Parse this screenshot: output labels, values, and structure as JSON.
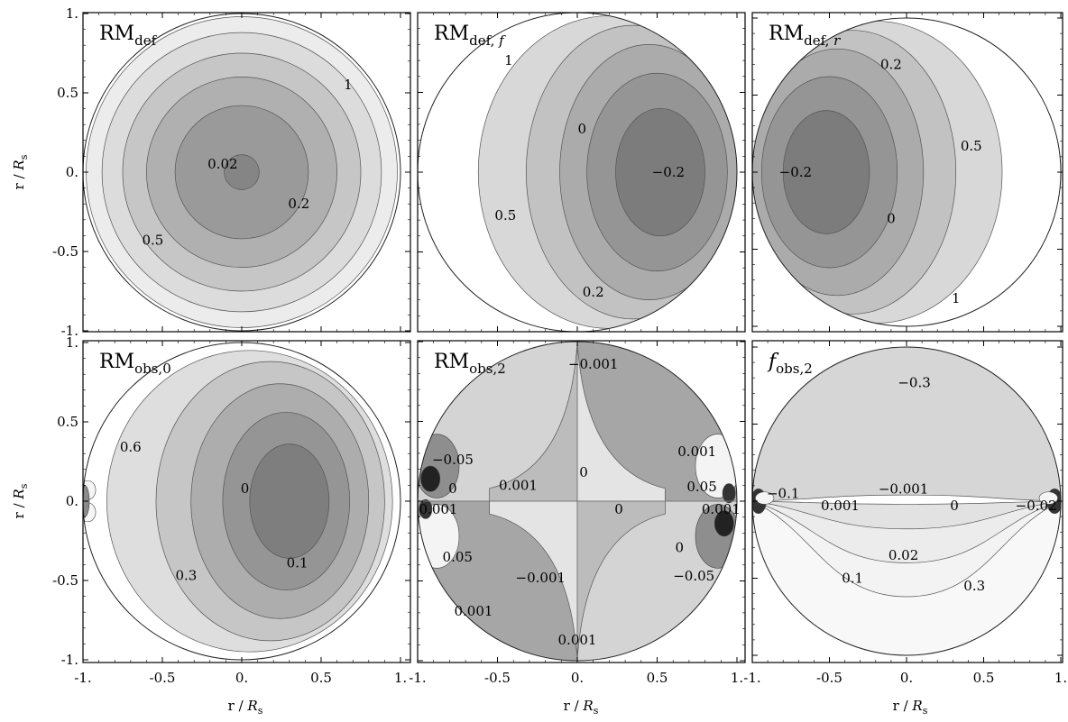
{
  "chart_data": [
    {
      "type": "heatmap",
      "title": {
        "main": "RM",
        "sub": "def",
        "italic_sub": ""
      },
      "xlim": [
        -1,
        1
      ],
      "ylim": [
        -1,
        1
      ],
      "x_ticks": [
        "-1.",
        "-0.5",
        "0.",
        "0.5",
        "1."
      ],
      "y_ticks": [
        "1.",
        "0.5",
        "0.",
        "-0.5",
        "-1."
      ],
      "contours": [
        {
          "cx": 0,
          "cy": 0,
          "rx": 0.98,
          "ry": 0.98,
          "fill": "#ececec"
        },
        {
          "cx": 0,
          "cy": 0,
          "rx": 0.88,
          "ry": 0.88,
          "fill": "#dcdcdc"
        },
        {
          "cx": 0,
          "cy": 0,
          "rx": 0.75,
          "ry": 0.75,
          "fill": "#c6c6c6"
        },
        {
          "cx": 0,
          "cy": 0,
          "rx": 0.6,
          "ry": 0.6,
          "fill": "#b0b0b0"
        },
        {
          "cx": 0,
          "cy": 0,
          "rx": 0.42,
          "ry": 0.42,
          "fill": "#9a9a9a"
        },
        {
          "cx": 0,
          "cy": 0,
          "rx": 0.11,
          "ry": 0.11,
          "fill": "#858585"
        }
      ],
      "labels": [
        {
          "text": "1",
          "x": 0.67,
          "y": 0.55
        },
        {
          "text": "0.02",
          "x": -0.12,
          "y": 0.05
        },
        {
          "text": "0.2",
          "x": 0.36,
          "y": -0.2
        },
        {
          "text": "0.5",
          "x": -0.56,
          "y": -0.43
        }
      ]
    },
    {
      "type": "heatmap",
      "title": {
        "main": "RM",
        "sub": "def,",
        "italic_sub": "f"
      },
      "xlim": [
        -1,
        1
      ],
      "ylim": [
        -1,
        1
      ],
      "x_ticks": [
        "-1.",
        "-0.5",
        "0.",
        "0.5",
        "1."
      ],
      "y_ticks": [
        "1.",
        "0.5",
        "0.",
        "-0.5",
        "-1."
      ],
      "contours": [
        {
          "cx": 0.2,
          "cy": 0,
          "rx": 0.82,
          "ry": 0.98,
          "fill": "#d8d8d8"
        },
        {
          "cx": 0.35,
          "cy": 0,
          "rx": 0.67,
          "ry": 0.92,
          "fill": "#c2c2c2"
        },
        {
          "cx": 0.45,
          "cy": 0,
          "rx": 0.56,
          "ry": 0.8,
          "fill": "#ababab"
        },
        {
          "cx": 0.5,
          "cy": 0,
          "rx": 0.44,
          "ry": 0.62,
          "fill": "#959595"
        },
        {
          "cx": 0.52,
          "cy": 0,
          "rx": 0.28,
          "ry": 0.4,
          "fill": "#7c7c7c"
        }
      ],
      "labels": [
        {
          "text": "1",
          "x": -0.43,
          "y": 0.7
        },
        {
          "text": "0",
          "x": 0.03,
          "y": 0.27
        },
        {
          "text": "-0.2",
          "x": 0.57,
          "y": 0.0
        },
        {
          "text": "0.5",
          "x": -0.45,
          "y": -0.27
        },
        {
          "text": "0.2",
          "x": 0.1,
          "y": -0.75
        }
      ]
    },
    {
      "type": "heatmap",
      "title": {
        "main": "RM",
        "sub": "def,",
        "italic_sub": "r"
      },
      "xlim": [
        -1,
        1
      ],
      "ylim": [
        -1,
        1
      ],
      "x_ticks": [
        "-1.",
        "-0.5",
        "0.",
        "0.5",
        "1."
      ],
      "y_ticks": [
        "1.",
        "0.5",
        "0.",
        "-0.5",
        "-1."
      ],
      "contours": [
        {
          "cx": -0.2,
          "cy": 0,
          "rx": 0.82,
          "ry": 0.98,
          "fill": "#d8d8d8"
        },
        {
          "cx": -0.35,
          "cy": 0,
          "rx": 0.67,
          "ry": 0.92,
          "fill": "#c2c2c2"
        },
        {
          "cx": -0.45,
          "cy": 0,
          "rx": 0.56,
          "ry": 0.8,
          "fill": "#ababab"
        },
        {
          "cx": -0.5,
          "cy": 0,
          "rx": 0.44,
          "ry": 0.62,
          "fill": "#959595"
        },
        {
          "cx": -0.52,
          "cy": 0,
          "rx": 0.28,
          "ry": 0.4,
          "fill": "#7c7c7c"
        }
      ],
      "labels": [
        {
          "text": "0.2",
          "x": -0.1,
          "y": 0.7
        },
        {
          "text": "0.5",
          "x": 0.42,
          "y": 0.17
        },
        {
          "text": "-0.2",
          "x": -0.72,
          "y": 0.0
        },
        {
          "text": "0",
          "x": -0.1,
          "y": -0.3
        },
        {
          "text": "1",
          "x": 0.32,
          "y": -0.82
        }
      ]
    },
    {
      "type": "heatmap",
      "title": {
        "main": "RM",
        "sub": "obs,0",
        "italic_sub": ""
      },
      "xlim": [
        -1,
        1
      ],
      "ylim": [
        -1,
        1
      ],
      "x_ticks": [
        "-1.",
        "-0.5",
        "0.",
        "0.5",
        "1."
      ],
      "y_ticks": [
        "1.",
        "0.5",
        "0.",
        "-0.5",
        "-1."
      ],
      "contours": [
        {
          "cx": 0.05,
          "cy": 0,
          "rx": 0.9,
          "ry": 0.95,
          "fill": "#dedede"
        },
        {
          "cx": 0.18,
          "cy": 0,
          "rx": 0.72,
          "ry": 0.88,
          "fill": "#c6c6c6"
        },
        {
          "cx": 0.24,
          "cy": 0,
          "rx": 0.56,
          "ry": 0.74,
          "fill": "#adadad"
        },
        {
          "cx": 0.28,
          "cy": 0,
          "rx": 0.4,
          "ry": 0.56,
          "fill": "#959595"
        },
        {
          "cx": 0.3,
          "cy": 0,
          "rx": 0.25,
          "ry": 0.36,
          "fill": "#7e7e7e"
        }
      ],
      "labels": [
        {
          "text": "0.6",
          "x": -0.7,
          "y": 0.34
        },
        {
          "text": "0",
          "x": 0.02,
          "y": 0.08
        },
        {
          "text": "0.3",
          "x": -0.35,
          "y": -0.47
        },
        {
          "text": "0.1",
          "x": 0.35,
          "y": -0.39
        }
      ]
    },
    {
      "type": "heatmap",
      "title": {
        "main": "RM",
        "sub": "obs,2",
        "italic_sub": ""
      },
      "xlim": [
        -1,
        1
      ],
      "ylim": [
        -1,
        1
      ],
      "x_ticks": [
        "-1.",
        "-0.5",
        "0.",
        "0.5",
        "1."
      ],
      "y_ticks": [
        "1.",
        "0.5",
        "0.",
        "-0.5",
        "-1."
      ],
      "labels": [
        {
          "text": "-0.001",
          "x": 0.1,
          "y": 0.86
        },
        {
          "text": "0.001",
          "x": 0.75,
          "y": 0.31
        },
        {
          "text": "-0.05",
          "x": -0.78,
          "y": 0.26
        },
        {
          "text": "0",
          "x": 0.04,
          "y": 0.18
        },
        {
          "text": "0.001",
          "x": -0.37,
          "y": 0.1
        },
        {
          "text": "0.05",
          "x": 0.78,
          "y": 0.09
        },
        {
          "text": "0",
          "x": -0.78,
          "y": 0.08
        },
        {
          "text": "0.001",
          "x": -0.87,
          "y": -0.05
        },
        {
          "text": "0",
          "x": 0.26,
          "y": -0.05
        },
        {
          "text": "0.001",
          "x": 0.9,
          "y": -0.05
        },
        {
          "text": "0",
          "x": 0.64,
          "y": -0.29
        },
        {
          "text": "0.05",
          "x": -0.75,
          "y": -0.35
        },
        {
          "text": "-0.001",
          "x": -0.23,
          "y": -0.48
        },
        {
          "text": "-0.05",
          "x": 0.73,
          "y": -0.47
        },
        {
          "text": "0.001",
          "x": -0.65,
          "y": -0.69
        },
        {
          "text": "0.001",
          "x": 0.0,
          "y": -0.87
        }
      ]
    },
    {
      "type": "heatmap",
      "title": {
        "main": "f",
        "sub": "obs,2",
        "italic_sub": ""
      },
      "xlim": [
        -1,
        1
      ],
      "ylim": [
        -1,
        1
      ],
      "x_ticks": [
        "-1.",
        "-0.5",
        "0.",
        "0.5",
        "1."
      ],
      "y_ticks": [
        "1.",
        "0.5",
        "0.",
        "-0.5",
        "-1."
      ],
      "labels": [
        {
          "text": "-0.3",
          "x": 0.05,
          "y": 0.77
        },
        {
          "text": "-0.1",
          "x": -0.8,
          "y": 0.05
        },
        {
          "text": "-0.001",
          "x": -0.02,
          "y": 0.08
        },
        {
          "text": "0.001",
          "x": -0.43,
          "y": -0.03
        },
        {
          "text": "0",
          "x": 0.31,
          "y": -0.03
        },
        {
          "text": "-0.02",
          "x": 0.84,
          "y": -0.03
        },
        {
          "text": "0.02",
          "x": -0.02,
          "y": -0.35
        },
        {
          "text": "0.1",
          "x": -0.35,
          "y": -0.5
        },
        {
          "text": "0.3",
          "x": 0.44,
          "y": -0.55
        }
      ]
    }
  ],
  "axis_label_main": "r / ",
  "axis_label_italic": "R",
  "axis_label_sub": "s"
}
